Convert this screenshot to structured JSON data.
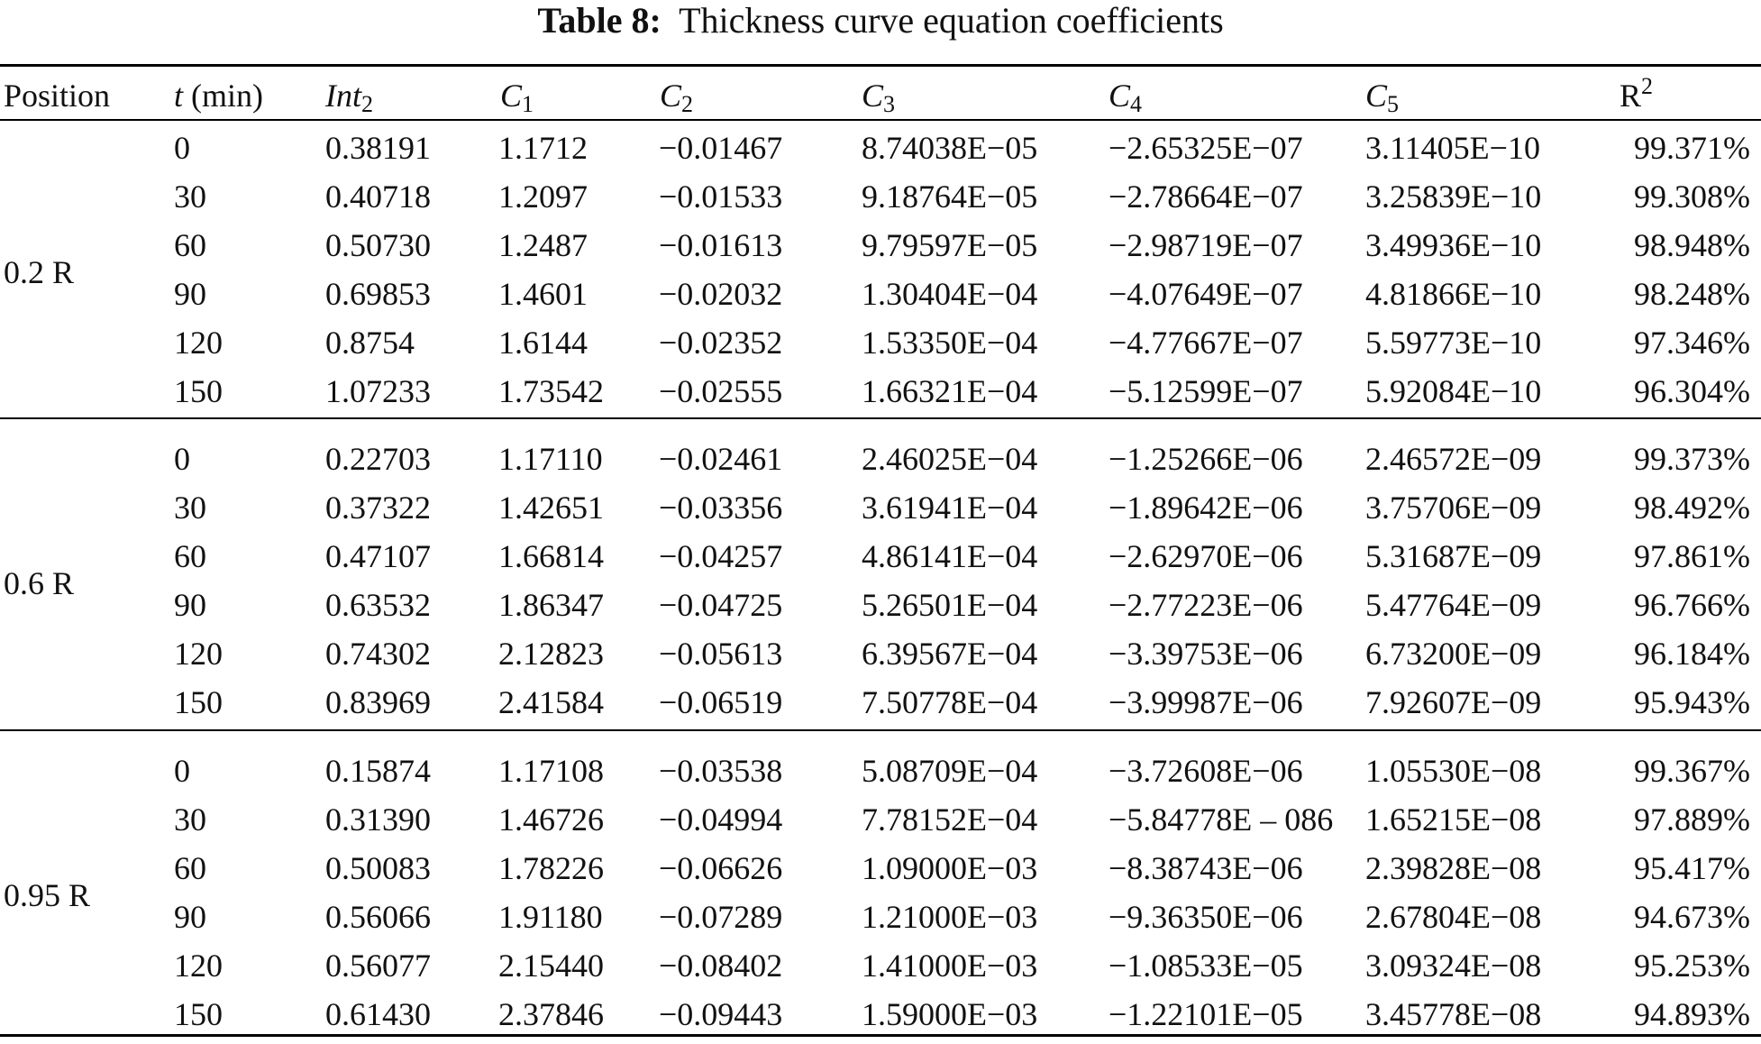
{
  "caption": {
    "label": "Table 8:",
    "text": "Thickness curve equation coefficients"
  },
  "headers": {
    "position": "Position",
    "t_var": "t",
    "t_unit": "(min)",
    "int_base": "Int",
    "int_sub": "2",
    "c1_base": "C",
    "c1_sub": "1",
    "c2_base": "C",
    "c2_sub": "2",
    "c3_base": "C",
    "c3_sub": "3",
    "c4_base": "C",
    "c4_sub": "4",
    "c5_base": "C",
    "c5_sub": "5",
    "r2_base": "R",
    "r2_sup": "2"
  },
  "groups": [
    {
      "position": "0.2 R",
      "rows": [
        {
          "t": "0",
          "int2": "0.38191",
          "c1": "1.1712",
          "c2": "−0.01467",
          "c3": "8.74038E−05",
          "c4": "−2.65325E−07",
          "c5": "3.11405E−10",
          "r2": "99.371%"
        },
        {
          "t": "30",
          "int2": "0.40718",
          "c1": "1.2097",
          "c2": "−0.01533",
          "c3": "9.18764E−05",
          "c4": "−2.78664E−07",
          "c5": "3.25839E−10",
          "r2": "99.308%"
        },
        {
          "t": "60",
          "int2": "0.50730",
          "c1": "1.2487",
          "c2": "−0.01613",
          "c3": "9.79597E−05",
          "c4": "−2.98719E−07",
          "c5": "3.49936E−10",
          "r2": "98.948%"
        },
        {
          "t": "90",
          "int2": "0.69853",
          "c1": "1.4601",
          "c2": "−0.02032",
          "c3": "1.30404E−04",
          "c4": "−4.07649E−07",
          "c5": "4.81866E−10",
          "r2": "98.248%"
        },
        {
          "t": "120",
          "int2": "0.8754",
          "c1": "1.6144",
          "c2": "−0.02352",
          "c3": "1.53350E−04",
          "c4": "−4.77667E−07",
          "c5": "5.59773E−10",
          "r2": "97.346%"
        },
        {
          "t": "150",
          "int2": "1.07233",
          "c1": "1.73542",
          "c2": "−0.02555",
          "c3": "1.66321E−04",
          "c4": "−5.12599E−07",
          "c5": "5.92084E−10",
          "r2": "96.304%"
        }
      ]
    },
    {
      "position": "0.6 R",
      "rows": [
        {
          "t": "0",
          "int2": "0.22703",
          "c1": "1.17110",
          "c2": "−0.02461",
          "c3": "2.46025E−04",
          "c4": "−1.25266E−06",
          "c5": "2.46572E−09",
          "r2": "99.373%"
        },
        {
          "t": "30",
          "int2": "0.37322",
          "c1": "1.42651",
          "c2": "−0.03356",
          "c3": "3.61941E−04",
          "c4": "−1.89642E−06",
          "c5": "3.75706E−09",
          "r2": "98.492%"
        },
        {
          "t": "60",
          "int2": "0.47107",
          "c1": "1.66814",
          "c2": "−0.04257",
          "c3": "4.86141E−04",
          "c4": "−2.62970E−06",
          "c5": "5.31687E−09",
          "r2": "97.861%"
        },
        {
          "t": "90",
          "int2": "0.63532",
          "c1": "1.86347",
          "c2": "−0.04725",
          "c3": "5.26501E−04",
          "c4": "−2.77223E−06",
          "c5": "5.47764E−09",
          "r2": "96.766%"
        },
        {
          "t": "120",
          "int2": "0.74302",
          "c1": "2.12823",
          "c2": "−0.05613",
          "c3": "6.39567E−04",
          "c4": "−3.39753E−06",
          "c5": "6.73200E−09",
          "r2": "96.184%"
        },
        {
          "t": "150",
          "int2": "0.83969",
          "c1": "2.41584",
          "c2": "−0.06519",
          "c3": "7.50778E−04",
          "c4": "−3.99987E−06",
          "c5": "7.92607E−09",
          "r2": "95.943%"
        }
      ]
    },
    {
      "position": "0.95 R",
      "rows": [
        {
          "t": "0",
          "int2": "0.15874",
          "c1": "1.17108",
          "c2": "−0.03538",
          "c3": "5.08709E−04",
          "c4": "−3.72608E−06",
          "c5": "1.05530E−08",
          "r2": "99.367%"
        },
        {
          "t": "30",
          "int2": "0.31390",
          "c1": "1.46726",
          "c2": "−0.04994",
          "c3": "7.78152E−04",
          "c4": "−5.84778E – 086",
          "c5": "1.65215E−08",
          "r2": "97.889%"
        },
        {
          "t": "60",
          "int2": "0.50083",
          "c1": "1.78226",
          "c2": "−0.06626",
          "c3": "1.09000E−03",
          "c4": "−8.38743E−06",
          "c5": "2.39828E−08",
          "r2": "95.417%"
        },
        {
          "t": "90",
          "int2": "0.56066",
          "c1": "1.91180",
          "c2": "−0.07289",
          "c3": "1.21000E−03",
          "c4": "−9.36350E−06",
          "c5": "2.67804E−08",
          "r2": "94.673%"
        },
        {
          "t": "120",
          "int2": "0.56077",
          "c1": "2.15440",
          "c2": "−0.08402",
          "c3": "1.41000E−03",
          "c4": "−1.08533E−05",
          "c5": "3.09324E−08",
          "r2": "95.253%"
        },
        {
          "t": "150",
          "int2": "0.61430",
          "c1": "2.37846",
          "c2": "−0.09443",
          "c3": "1.59000E−03",
          "c4": "−1.22101E−05",
          "c5": "3.45778E−08",
          "r2": "94.893%"
        }
      ]
    }
  ]
}
